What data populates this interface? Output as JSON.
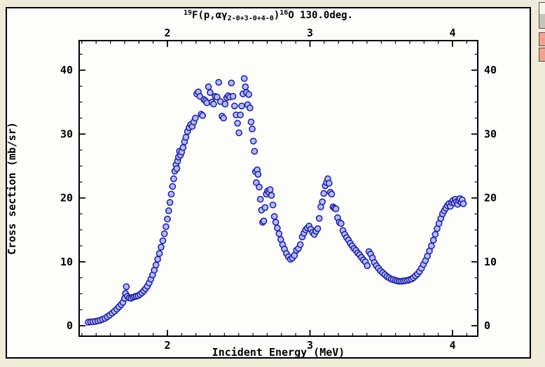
{
  "window": {
    "title_parts": [
      {
        "t": "19",
        "style": "sup"
      },
      {
        "t": "F(p,αγ",
        "style": ""
      },
      {
        "t": "2-0+3-0+4-0",
        "style": "sub"
      },
      {
        "t": ")",
        "style": ""
      },
      {
        "t": "16",
        "style": "sup"
      },
      {
        "t": "O 130.0deg.",
        "style": ""
      }
    ],
    "title_plain": "19F(p,ag2-0+3-0+4-0)16O 130.0deg."
  },
  "side_buttons": [
    {
      "name": "scrollbar-button",
      "color": "grey"
    },
    {
      "name": "side-button-1",
      "color": "salmon"
    },
    {
      "name": "side-button-2",
      "color": "salmon"
    }
  ],
  "colors": {
    "desktop": "#efebd8",
    "window_bg": "#fdfdfc",
    "frame": "#000000",
    "marker_fill": "#b3bcf2",
    "marker_stroke": "#1b1b9e",
    "salmon_button": "#efa28b"
  },
  "chart_data": {
    "type": "scatter",
    "title": "19F(p,αγ2-0+3-0+4-0)16O 130.0deg.",
    "xlabel": "Incident Energy (MeV)",
    "ylabel": "Cross section (mb/sr)",
    "xlim": [
      1.381,
      4.177
    ],
    "ylim": [
      -1.64,
      44.63
    ],
    "x_major_ticks": [
      2,
      3,
      4
    ],
    "x_tick_labels": [
      "2",
      "3",
      "4"
    ],
    "x_minor_step": 0.1,
    "y_major_ticks": [
      0,
      10,
      20,
      30,
      40
    ],
    "y_tick_labels": [
      "0",
      "10",
      "20",
      "30",
      "40"
    ],
    "y_minor_step": 2.5,
    "grid": false,
    "legend": "none",
    "top_axis_mirrors_bottom": true,
    "right_axis_mirrors_left": true,
    "marker": {
      "shape": "circle",
      "radius": 4.1,
      "stroke_width": 1.5
    },
    "points": [
      [
        1.445,
        0.55
      ],
      [
        1.462,
        0.6
      ],
      [
        1.478,
        0.62
      ],
      [
        1.495,
        0.68
      ],
      [
        1.512,
        0.75
      ],
      [
        1.528,
        0.85
      ],
      [
        1.545,
        1.0
      ],
      [
        1.562,
        1.15
      ],
      [
        1.578,
        1.4
      ],
      [
        1.595,
        1.65
      ],
      [
        1.612,
        1.95
      ],
      [
        1.628,
        2.25
      ],
      [
        1.645,
        2.6
      ],
      [
        1.66,
        2.95
      ],
      [
        1.675,
        3.3
      ],
      [
        1.688,
        3.65
      ],
      [
        1.7,
        4.3
      ],
      [
        1.706,
        5.05
      ],
      [
        1.712,
        6.1
      ],
      [
        1.72,
        4.6
      ],
      [
        1.732,
        4.35
      ],
      [
        1.745,
        4.3
      ],
      [
        1.758,
        4.45
      ],
      [
        1.77,
        4.55
      ],
      [
        1.782,
        4.62
      ],
      [
        1.795,
        4.7
      ],
      [
        1.808,
        4.9
      ],
      [
        1.821,
        5.15
      ],
      [
        1.834,
        5.45
      ],
      [
        1.847,
        5.8
      ],
      [
        1.86,
        6.2
      ],
      [
        1.872,
        6.7
      ],
      [
        1.884,
        7.3
      ],
      [
        1.896,
        7.95
      ],
      [
        1.908,
        8.7
      ],
      [
        1.92,
        9.5
      ],
      [
        1.932,
        10.4
      ],
      [
        1.944,
        11.3
      ],
      [
        1.956,
        12.3
      ],
      [
        1.968,
        13.3
      ],
      [
        1.979,
        14.4
      ],
      [
        1.99,
        15.5
      ],
      [
        2.0,
        16.7
      ],
      [
        2.009,
        18.0
      ],
      [
        2.018,
        19.3
      ],
      [
        2.027,
        20.6
      ],
      [
        2.036,
        21.8
      ],
      [
        2.044,
        23.0
      ],
      [
        2.052,
        24.2
      ],
      [
        2.06,
        25.2
      ],
      [
        2.066,
        24.6
      ],
      [
        2.072,
        25.8
      ],
      [
        2.078,
        26.4
      ],
      [
        2.085,
        27.3
      ],
      [
        2.092,
        26.7
      ],
      [
        2.1,
        27.2
      ],
      [
        2.11,
        27.9
      ],
      [
        2.12,
        28.8
      ],
      [
        2.13,
        29.5
      ],
      [
        2.141,
        30.4
      ],
      [
        2.152,
        31.0
      ],
      [
        2.163,
        31.5
      ],
      [
        2.174,
        31.2
      ],
      [
        2.185,
        31.9
      ],
      [
        2.196,
        32.5
      ],
      [
        2.206,
        36.3
      ],
      [
        2.217,
        36.6
      ],
      [
        2.228,
        35.9
      ],
      [
        2.237,
        33.1
      ],
      [
        2.247,
        32.9
      ],
      [
        2.257,
        35.4
      ],
      [
        2.267,
        35.2
      ],
      [
        2.277,
        34.9
      ],
      [
        2.288,
        37.4
      ],
      [
        2.3,
        36.5
      ],
      [
        2.312,
        35.0
      ],
      [
        2.324,
        34.7
      ],
      [
        2.336,
        35.9
      ],
      [
        2.348,
        35.8
      ],
      [
        2.36,
        38.1
      ],
      [
        2.372,
        35.1
      ],
      [
        2.383,
        32.8
      ],
      [
        2.394,
        32.5
      ],
      [
        2.405,
        34.7
      ],
      [
        2.416,
        35.7
      ],
      [
        2.427,
        36.0
      ],
      [
        2.438,
        35.8
      ],
      [
        2.449,
        38.0
      ],
      [
        2.46,
        35.9
      ],
      [
        2.471,
        34.4
      ],
      [
        2.482,
        33.0
      ],
      [
        2.492,
        31.7
      ],
      [
        2.502,
        30.2
      ],
      [
        2.512,
        33.0
      ],
      [
        2.521,
        34.4
      ],
      [
        2.53,
        36.3
      ],
      [
        2.539,
        38.7
      ],
      [
        2.547,
        37.4
      ],
      [
        2.555,
        36.5
      ],
      [
        2.563,
        34.6
      ],
      [
        2.571,
        36.2
      ],
      [
        2.579,
        34.1
      ],
      [
        2.587,
        31.9
      ],
      [
        2.595,
        30.8
      ],
      [
        2.603,
        28.9
      ],
      [
        2.611,
        27.3
      ],
      [
        2.618,
        24.1
      ],
      [
        2.624,
        22.4
      ],
      [
        2.63,
        24.4
      ],
      [
        2.636,
        23.7
      ],
      [
        2.644,
        21.7
      ],
      [
        2.652,
        19.8
      ],
      [
        2.66,
        18.1
      ],
      [
        2.668,
        16.2
      ],
      [
        2.676,
        16.4
      ],
      [
        2.685,
        18.5
      ],
      [
        2.694,
        20.6
      ],
      [
        2.703,
        21.1
      ],
      [
        2.712,
        20.9
      ],
      [
        2.721,
        21.3
      ],
      [
        2.73,
        20.4
      ],
      [
        2.74,
        18.9
      ],
      [
        2.75,
        17.1
      ],
      [
        2.76,
        16.2
      ],
      [
        2.771,
        15.3
      ],
      [
        2.783,
        14.4
      ],
      [
        2.795,
        13.5
      ],
      [
        2.808,
        12.7
      ],
      [
        2.821,
        12.0
      ],
      [
        2.835,
        11.3
      ],
      [
        2.849,
        10.8
      ],
      [
        2.863,
        10.4
      ],
      [
        2.877,
        10.6
      ],
      [
        2.891,
        11.0
      ],
      [
        2.905,
        11.8
      ],
      [
        2.919,
        12.1
      ],
      [
        2.932,
        12.7
      ],
      [
        2.946,
        13.9
      ],
      [
        2.958,
        14.5
      ],
      [
        2.97,
        15.0
      ],
      [
        2.982,
        15.3
      ],
      [
        2.994,
        15.6
      ],
      [
        3.006,
        15.1
      ],
      [
        3.018,
        14.6
      ],
      [
        3.03,
        14.3
      ],
      [
        3.042,
        14.8
      ],
      [
        3.054,
        15.2
      ],
      [
        3.065,
        16.8
      ],
      [
        3.076,
        18.6
      ],
      [
        3.087,
        19.4
      ],
      [
        3.097,
        20.7
      ],
      [
        3.107,
        21.9
      ],
      [
        3.116,
        22.4
      ],
      [
        3.125,
        23.0
      ],
      [
        3.134,
        22.3
      ],
      [
        3.143,
        20.9
      ],
      [
        3.152,
        20.6
      ],
      [
        3.162,
        18.6
      ],
      [
        3.172,
        18.4
      ],
      [
        3.182,
        18.3
      ],
      [
        3.194,
        16.9
      ],
      [
        3.206,
        16.2
      ],
      [
        3.218,
        16.0
      ],
      [
        3.231,
        14.9
      ],
      [
        3.244,
        14.3
      ],
      [
        3.257,
        13.8
      ],
      [
        3.27,
        13.4
      ],
      [
        3.283,
        12.9
      ],
      [
        3.296,
        12.5
      ],
      [
        3.309,
        12.1
      ],
      [
        3.322,
        11.8
      ],
      [
        3.335,
        11.4
      ],
      [
        3.348,
        11.1
      ],
      [
        3.361,
        10.7
      ],
      [
        3.375,
        10.3
      ],
      [
        3.389,
        10.0
      ],
      [
        3.402,
        9.4
      ],
      [
        3.414,
        11.6
      ],
      [
        3.426,
        11.2
      ],
      [
        3.438,
        10.6
      ],
      [
        3.452,
        9.9
      ],
      [
        3.466,
        9.4
      ],
      [
        3.48,
        9.0
      ],
      [
        3.495,
        8.6
      ],
      [
        3.51,
        8.3
      ],
      [
        3.525,
        8.0
      ],
      [
        3.54,
        7.7
      ],
      [
        3.555,
        7.5
      ],
      [
        3.57,
        7.3
      ],
      [
        3.585,
        7.2
      ],
      [
        3.6,
        7.1
      ],
      [
        3.614,
        7.0
      ],
      [
        3.628,
        6.95
      ],
      [
        3.642,
        6.95
      ],
      [
        3.656,
        7.0
      ],
      [
        3.67,
        7.05
      ],
      [
        3.684,
        7.1
      ],
      [
        3.698,
        7.2
      ],
      [
        3.712,
        7.3
      ],
      [
        3.726,
        7.5
      ],
      [
        3.74,
        7.8
      ],
      [
        3.754,
        8.1
      ],
      [
        3.768,
        8.5
      ],
      [
        3.782,
        9.0
      ],
      [
        3.796,
        9.6
      ],
      [
        3.81,
        10.2
      ],
      [
        3.824,
        10.9
      ],
      [
        3.838,
        11.7
      ],
      [
        3.852,
        12.5
      ],
      [
        3.866,
        13.4
      ],
      [
        3.879,
        14.3
      ],
      [
        3.892,
        15.2
      ],
      [
        3.905,
        16.0
      ],
      [
        3.918,
        16.8
      ],
      [
        3.93,
        17.5
      ],
      [
        3.942,
        18.0
      ],
      [
        3.953,
        18.4
      ],
      [
        3.964,
        18.8
      ],
      [
        3.975,
        19.1
      ],
      [
        3.985,
        18.7
      ],
      [
        3.994,
        19.3
      ],
      [
        4.003,
        19.6
      ],
      [
        4.012,
        19.2
      ],
      [
        4.02,
        19.8
      ],
      [
        4.028,
        19.4
      ],
      [
        4.036,
        19.0
      ],
      [
        4.044,
        19.6
      ],
      [
        4.052,
        19.9
      ],
      [
        4.06,
        19.3
      ],
      [
        4.068,
        19.7
      ],
      [
        4.076,
        19.1
      ]
    ]
  }
}
